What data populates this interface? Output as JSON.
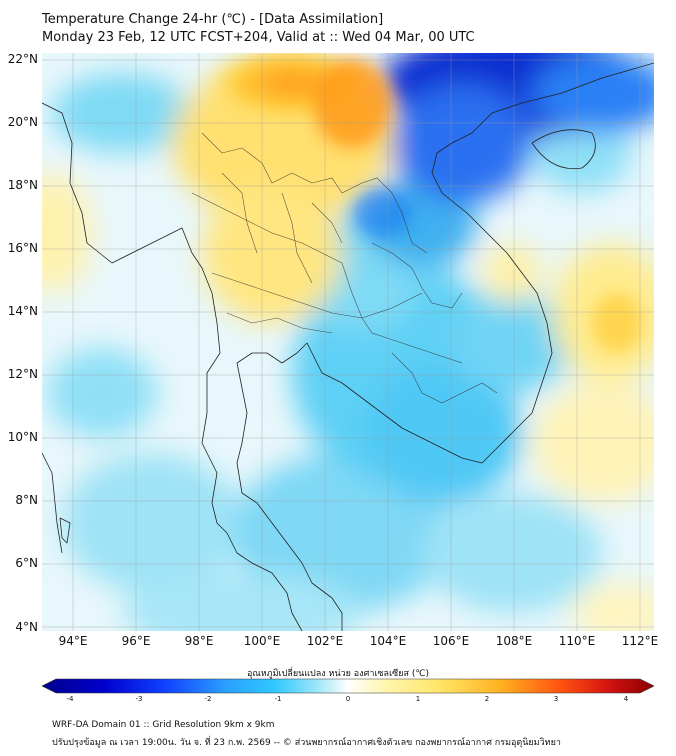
{
  "header": {
    "title": "Temperature Change 24-hr (℃) - [Data Assimilation]",
    "subtitle": "Monday 23 Feb, 12 UTC FCST+204, Valid at :: Wed 04 Mar, 00 UTC"
  },
  "map": {
    "lat_labels": [
      "22°N",
      "20°N",
      "18°N",
      "16°N",
      "14°N",
      "12°N",
      "10°N",
      "8°N",
      "6°N",
      "4°N"
    ],
    "lon_labels": [
      "94°E",
      "96°E",
      "98°E",
      "100°E",
      "102°E",
      "104°E",
      "106°E",
      "108°E",
      "110°E",
      "112°E"
    ],
    "lat_range": [
      4,
      22
    ],
    "lon_range": [
      93,
      112.5
    ]
  },
  "colorbar": {
    "title": "อุณหภูมิเปลี่ยนแปลง หน่วย องศาเซลเซียส (℃)",
    "ticks": [
      "-4",
      "-3",
      "-2",
      "-1",
      "0",
      "1",
      "2",
      "3",
      "4"
    ],
    "colors": [
      "#00008b",
      "#0000cd",
      "#1040ff",
      "#2a7fff",
      "#2fb8ff",
      "#6fd6f5",
      "#bfeaf8",
      "#ffffff",
      "#fff6b0",
      "#ffe566",
      "#ffcc33",
      "#ffa020",
      "#ff6010",
      "#e01010",
      "#8b0000"
    ]
  },
  "footer": {
    "line1": "WRF-DA Domain 01 :: Grid Resolution 9km x 9km",
    "line2": "ปรับปรุงข้อมูล ณ เวลา 19:00น. วัน จ. ที่ 23 ก.พ. 2569 -- © ส่วนพยากรณ์อากาศเชิงตัวเลข กองพยากรณ์อากาศ กรมอุตุนิยมวิทยา"
  }
}
